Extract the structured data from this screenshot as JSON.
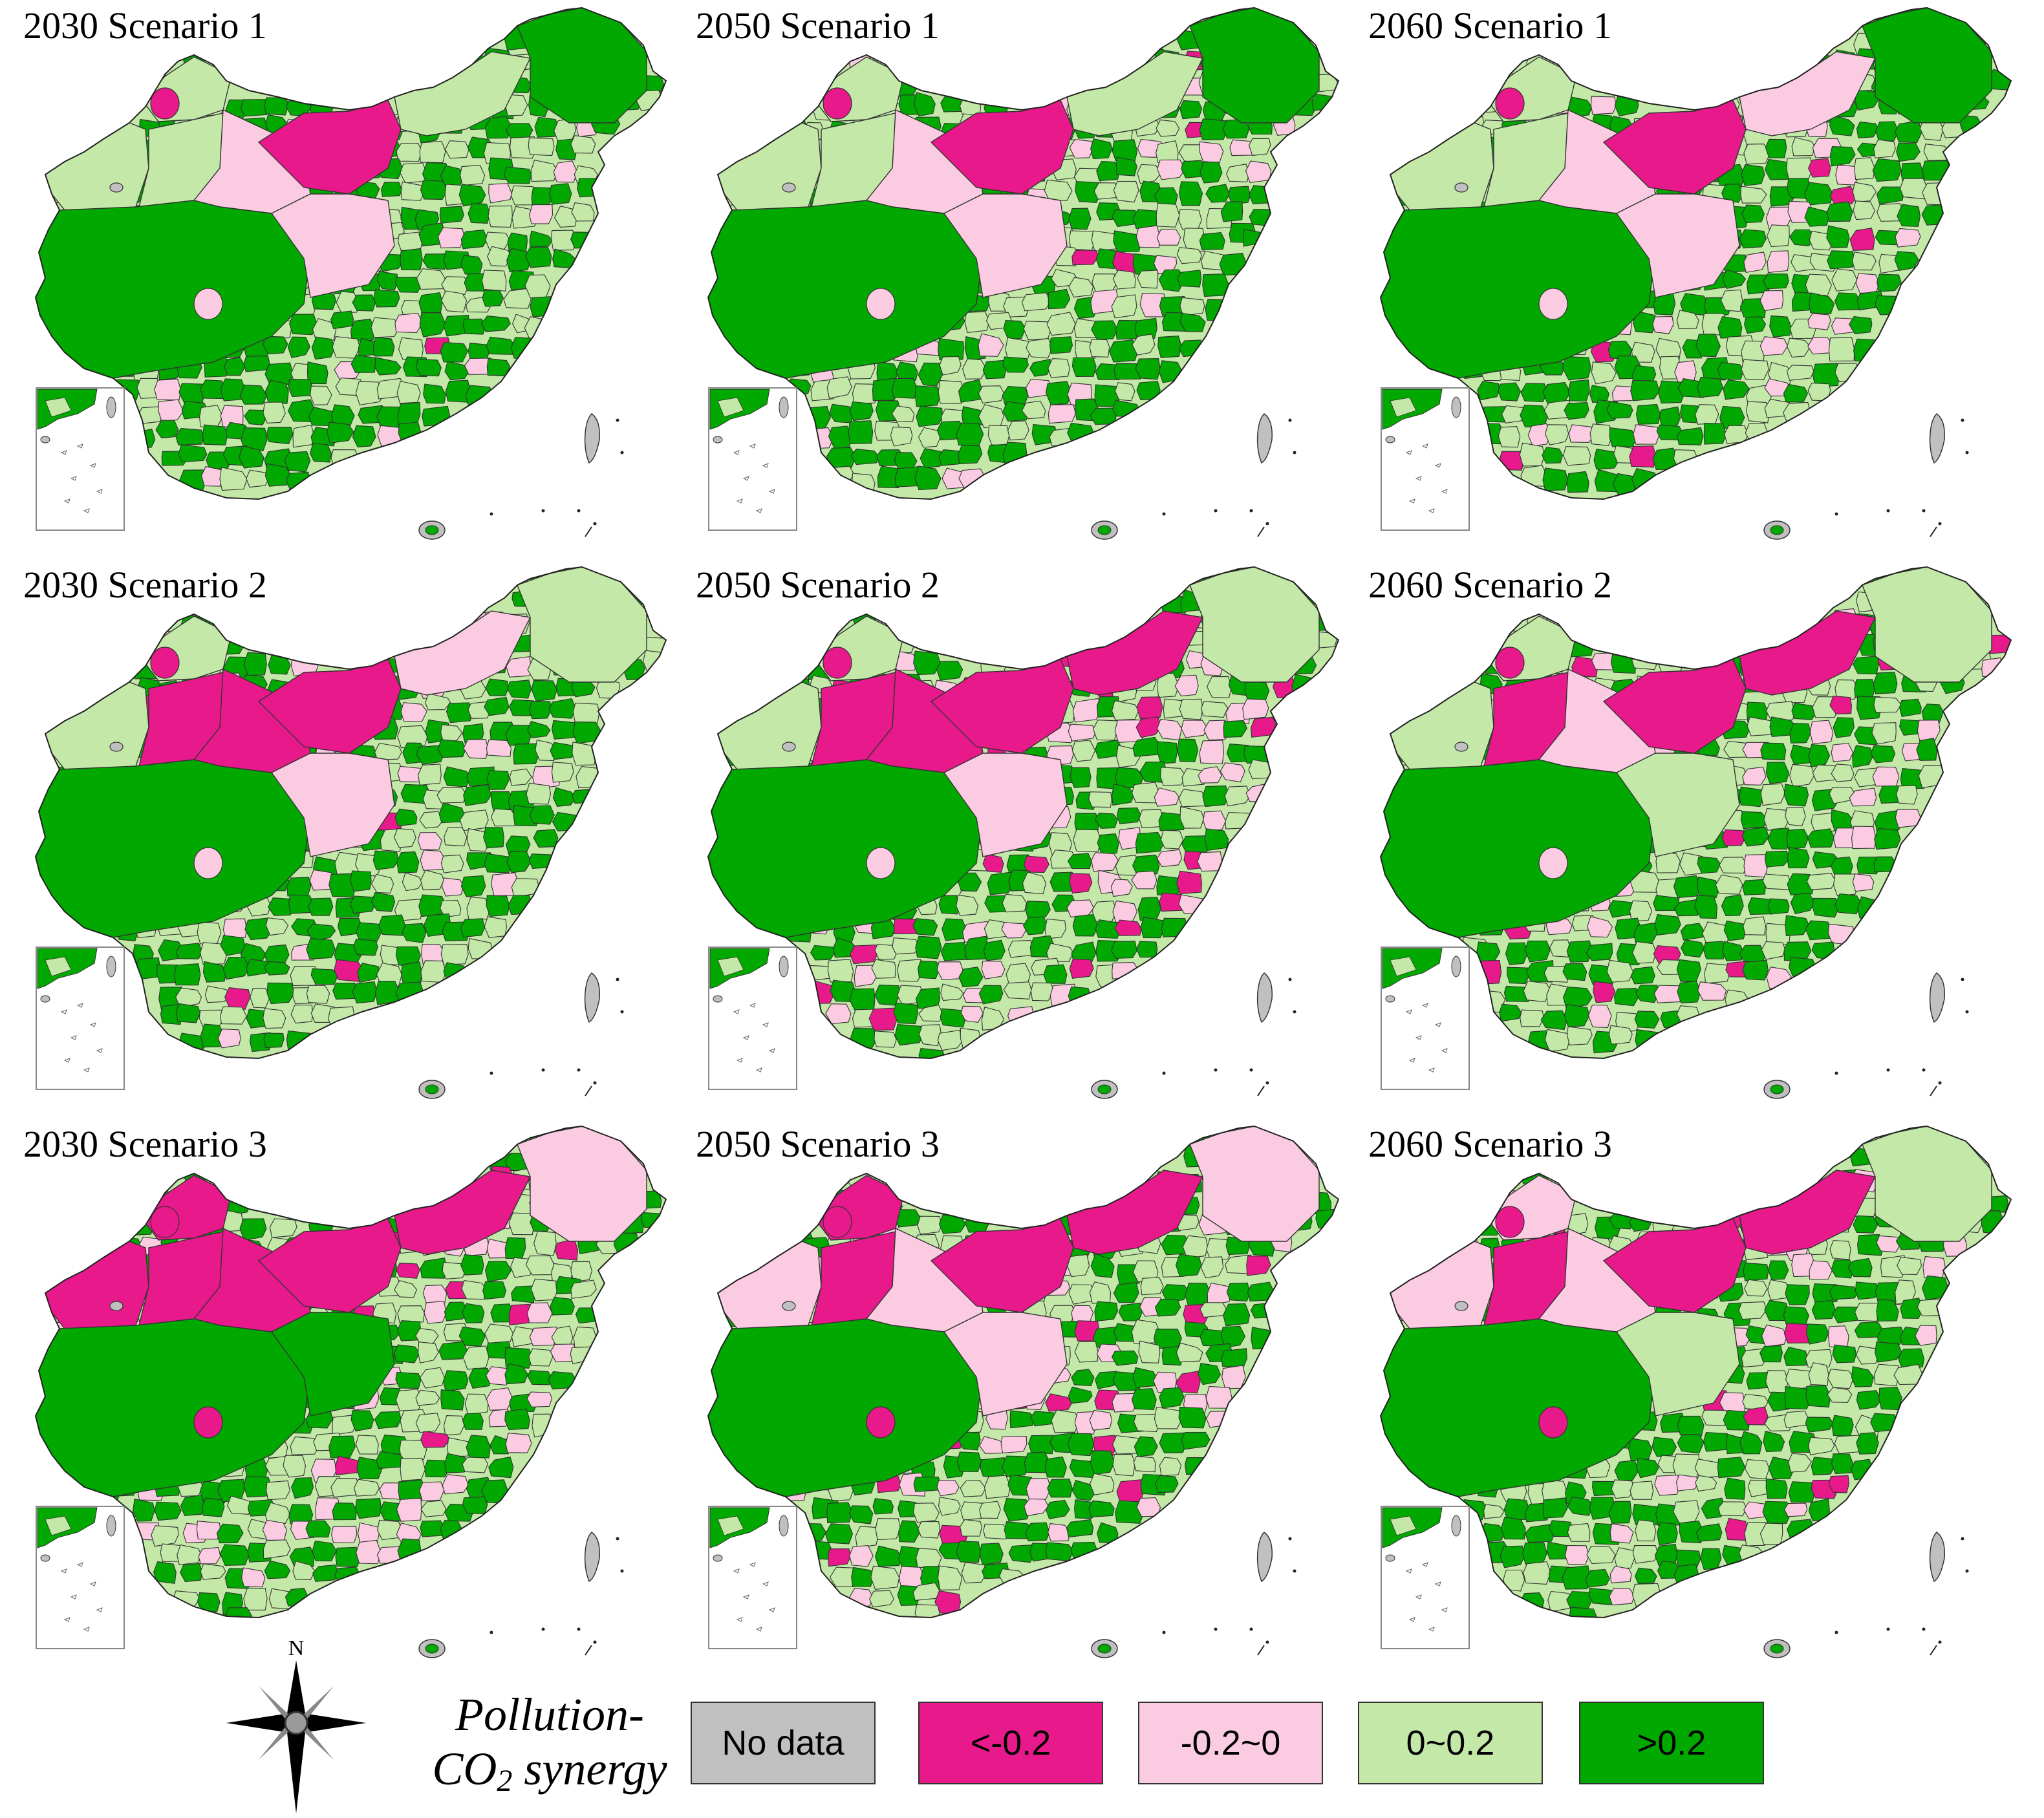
{
  "panels": [
    {
      "title": "2030 Scenario 1"
    },
    {
      "title": "2050 Scenario 1"
    },
    {
      "title": "2060 Scenario 1"
    },
    {
      "title": "2030 Scenario 2"
    },
    {
      "title": "2050 Scenario 2"
    },
    {
      "title": "2060 Scenario 2"
    },
    {
      "title": "2030 Scenario 3"
    },
    {
      "title": "2050 Scenario 3"
    },
    {
      "title": "2060 Scenario 3"
    }
  ],
  "compass": {
    "label": "N"
  },
  "legend": {
    "title_line1": "Pollution-",
    "title_co": "CO",
    "title_sub": "2",
    "title_rest": " synergy",
    "items": [
      {
        "label": "No data",
        "color": "#c0c0c0"
      },
      {
        "label": "<-0.2",
        "color": "#e8198b"
      },
      {
        "label": "-0.2~0",
        "color": "#fbcbe2"
      },
      {
        "label": "0~0.2",
        "color": "#c3e8a8"
      },
      {
        "label": ">0.2",
        "color": "#00a800"
      }
    ]
  },
  "colors": {
    "no_data": "#c0c0c0",
    "strong_negative": "#e8198b",
    "weak_negative": "#fbcbe2",
    "weak_positive": "#c3e8a8",
    "strong_positive": "#00a800"
  }
}
